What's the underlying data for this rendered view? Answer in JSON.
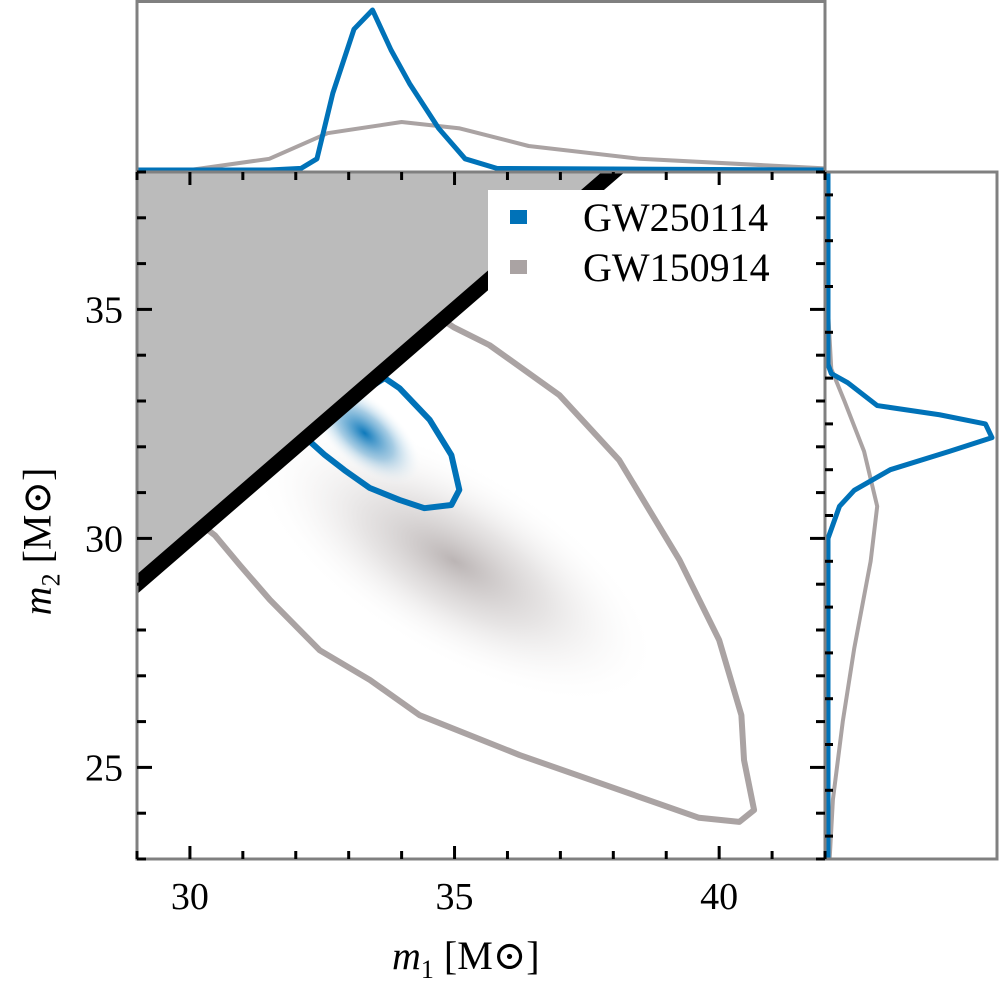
{
  "chart_data": {
    "type": "corner",
    "xlim": [
      29,
      42
    ],
    "ylim": [
      23,
      38
    ],
    "xticks": [
      30,
      35,
      40
    ],
    "yticks": [
      25,
      30,
      35
    ],
    "xlabel": {
      "var": "m",
      "sub": "1",
      "unit": "[M",
      "unit_sym": "⊙",
      "close": "]"
    },
    "ylabel": {
      "var": "m",
      "sub": "2",
      "unit": "[M",
      "unit_sym": "⊙",
      "close": "]"
    },
    "excluded_region": "m2 > m1",
    "excluded_region_color": "#bbbbbb",
    "boundary_line_color": "#000000",
    "legend_placement": "upper-right",
    "series": [
      {
        "name": "GW250114",
        "color": "#0072b8",
        "contour": [
          [
            33.68,
            33.5
          ],
          [
            33.96,
            33.28
          ],
          [
            34.53,
            32.59
          ],
          [
            34.94,
            31.82
          ],
          [
            35.09,
            31.06
          ],
          [
            34.94,
            30.73
          ],
          [
            34.43,
            30.66
          ],
          [
            33.96,
            30.84
          ],
          [
            33.4,
            31.1
          ],
          [
            32.92,
            31.49
          ],
          [
            32.55,
            31.82
          ],
          [
            32.3,
            32.08
          ],
          [
            32.0,
            32.3
          ]
        ],
        "density_peak": [
          33.3,
          32.3
        ],
        "m1_marginal": [
          [
            29,
            0
          ],
          [
            31.5,
            0
          ],
          [
            32.1,
            0.01
          ],
          [
            32.4,
            0.07
          ],
          [
            32.7,
            0.48
          ],
          [
            33.1,
            0.88
          ],
          [
            33.45,
            1.0
          ],
          [
            33.8,
            0.75
          ],
          [
            34.15,
            0.54
          ],
          [
            34.7,
            0.26
          ],
          [
            35.2,
            0.07
          ],
          [
            35.8,
            0.01
          ],
          [
            42,
            0
          ]
        ],
        "m2_marginal": [
          [
            38,
            0
          ],
          [
            33.8,
            0
          ],
          [
            33.6,
            0.02
          ],
          [
            33.4,
            0.12
          ],
          [
            32.9,
            0.3
          ],
          [
            32.7,
            0.68
          ],
          [
            32.5,
            0.96
          ],
          [
            32.2,
            1.0
          ],
          [
            31.9,
            0.74
          ],
          [
            31.5,
            0.38
          ],
          [
            31.05,
            0.16
          ],
          [
            30.7,
            0.07
          ],
          [
            30.0,
            0
          ],
          [
            23,
            0
          ]
        ]
      },
      {
        "name": "GW150914",
        "color": "#aaa3a3",
        "contour": [
          [
            34.6,
            34.9
          ],
          [
            35.0,
            34.6
          ],
          [
            35.66,
            34.22
          ],
          [
            36.98,
            33.13
          ],
          [
            38.11,
            31.71
          ],
          [
            39.25,
            29.53
          ],
          [
            40.0,
            27.78
          ],
          [
            40.42,
            26.14
          ],
          [
            40.47,
            25.16
          ],
          [
            40.66,
            24.07
          ],
          [
            40.38,
            23.81
          ],
          [
            39.62,
            23.9
          ],
          [
            38.11,
            24.51
          ],
          [
            36.23,
            25.27
          ],
          [
            34.34,
            26.14
          ],
          [
            33.4,
            26.91
          ],
          [
            32.45,
            27.56
          ],
          [
            31.51,
            28.66
          ],
          [
            30.94,
            29.42
          ],
          [
            30.47,
            30.07
          ],
          [
            30.1,
            30.4
          ]
        ],
        "density_peak": [
          35.0,
          29.5
        ],
        "m1_marginal": [
          [
            29,
            0
          ],
          [
            30,
            0.0
          ],
          [
            31.5,
            0.07
          ],
          [
            32.6,
            0.23
          ],
          [
            34,
            0.3
          ],
          [
            35.1,
            0.26
          ],
          [
            36.4,
            0.15
          ],
          [
            38.5,
            0.07
          ],
          [
            42,
            0.01
          ]
        ],
        "m2_marginal": [
          [
            38,
            0
          ],
          [
            35,
            0.0
          ],
          [
            33.7,
            0.02
          ],
          [
            33,
            0.1
          ],
          [
            31.9,
            0.22
          ],
          [
            30.7,
            0.3
          ],
          [
            29.5,
            0.26
          ],
          [
            27.6,
            0.16
          ],
          [
            26,
            0.09
          ],
          [
            24.3,
            0.03
          ],
          [
            23,
            0.01
          ]
        ]
      }
    ]
  }
}
